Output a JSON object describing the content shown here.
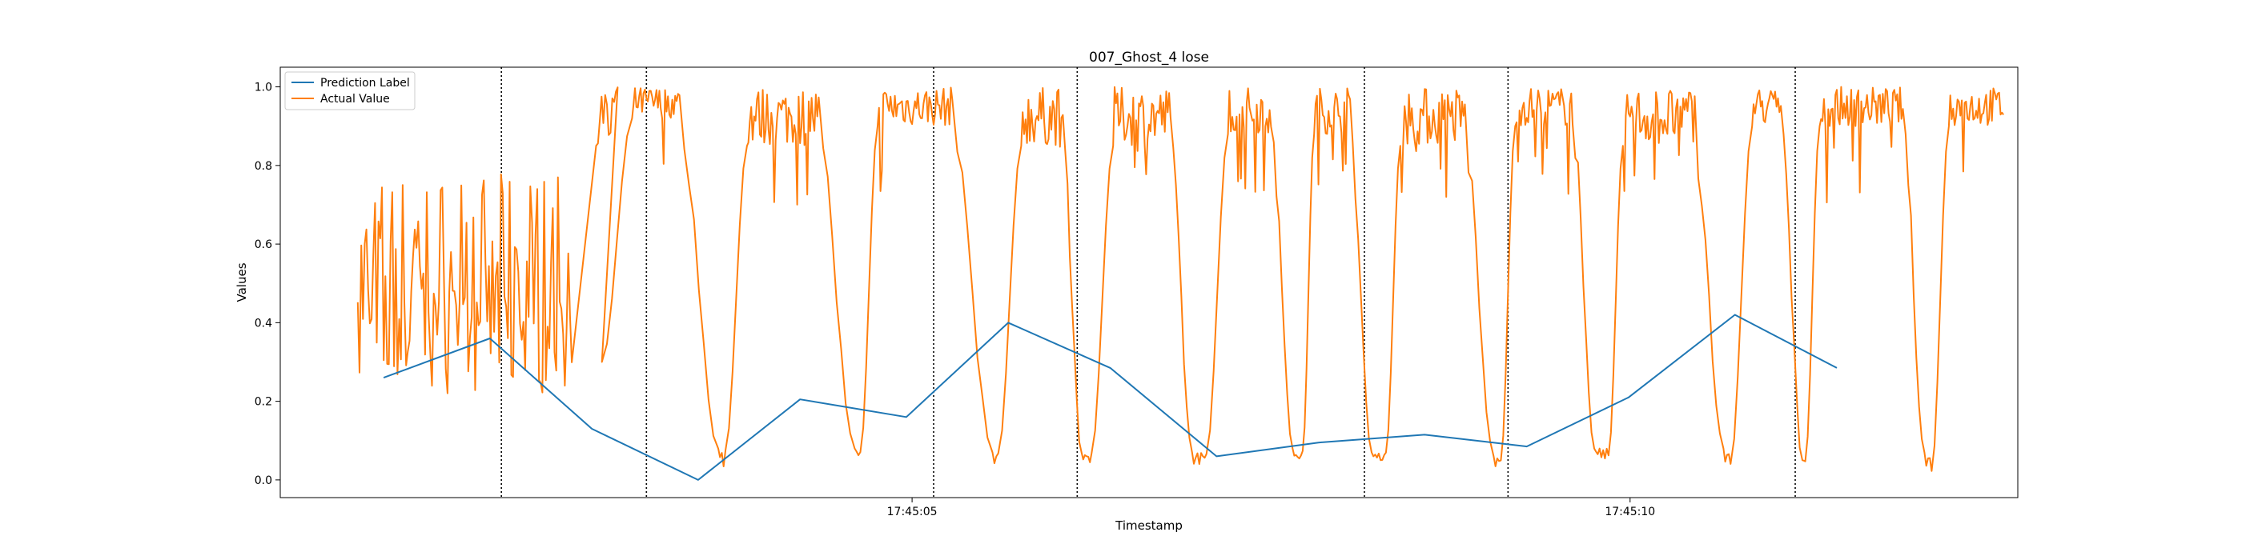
{
  "chart_data": {
    "type": "line",
    "title": "007_Ghost_4 lose",
    "xlabel": "Timestamp",
    "ylabel": "Values",
    "xlim": [
      0,
      12.1
    ],
    "ylim": [
      -0.045,
      1.05
    ],
    "yticks": [
      0.0,
      0.2,
      0.4,
      0.6,
      0.8,
      1.0
    ],
    "ytick_labels": [
      "0.0",
      "0.2",
      "0.4",
      "0.6",
      "0.8",
      "1.0"
    ],
    "xticks": [
      {
        "x": 4.4,
        "label": "17:45:05"
      },
      {
        "x": 9.4,
        "label": "17:45:10"
      }
    ],
    "legend_position": "top-left",
    "grid": false,
    "vlines": [
      1.54,
      2.55,
      4.55,
      5.55,
      7.55,
      8.55,
      10.55
    ],
    "series": [
      {
        "name": "Prediction Label",
        "color": "#1f77b4",
        "x": [
          0.72,
          1.46,
          2.17,
          2.91,
          3.62,
          4.36,
          5.07,
          5.78,
          6.52,
          7.23,
          7.97,
          8.68,
          9.39,
          10.13,
          10.84
        ],
        "y": [
          0.26,
          0.36,
          0.13,
          0.0,
          0.205,
          0.16,
          0.4,
          0.285,
          0.06,
          0.095,
          0.115,
          0.085,
          0.21,
          0.42,
          0.285
        ]
      },
      {
        "name": "Actual Value",
        "color": "#ff7f0e",
        "noise_segments": [
          [
            0.54,
            2.03,
            0.22,
            0.78
          ],
          [
            2.2,
            2.35,
            0.85,
            1.0
          ]
        ],
        "cycles": [
          {
            "rise": [
              2.24,
              2.45
            ],
            "high": [
              0.92,
              1.0
            ],
            "fall": [
              2.78,
              3.05
            ],
            "low": [
              0.02,
              0.08
            ]
          },
          {
            "rise": [
              3.1,
              3.25
            ],
            "high": [
              0.85,
              1.0
            ],
            "fall": [
              3.75,
              4.0
            ],
            "low": [
              0.03,
              0.08
            ]
          },
          {
            "rise": [
              4.04,
              4.16
            ],
            "high": [
              0.9,
              1.0
            ],
            "fall": [
              4.68,
              4.96
            ],
            "low": [
              0.03,
              0.07
            ]
          },
          {
            "rise": [
              5.0,
              5.16
            ],
            "high": [
              0.85,
              1.0
            ],
            "fall": [
              5.45,
              5.58
            ],
            "low": [
              0.04,
              0.07
            ]
          },
          {
            "rise": [
              5.65,
              5.8
            ],
            "high": [
              0.85,
              1.0
            ],
            "fall": [
              6.2,
              6.35
            ],
            "low": [
              0.04,
              0.07
            ]
          },
          {
            "rise": [
              6.45,
              6.6
            ],
            "high": [
              0.88,
              1.0
            ],
            "fall": [
              6.9,
              7.05
            ],
            "low": [
              0.05,
              0.08
            ]
          },
          {
            "rise": [
              7.12,
              7.2
            ],
            "high": [
              0.88,
              1.0
            ],
            "fall": [
              7.45,
              7.6
            ],
            "low": [
              0.05,
              0.07
            ]
          },
          {
            "rise": [
              7.7,
              7.8
            ],
            "high": [
              0.85,
              1.0
            ],
            "fall": [
              8.25,
              8.45
            ],
            "low": [
              0.02,
              0.06
            ]
          },
          {
            "rise": [
              8.5,
              8.6
            ],
            "high": [
              0.9,
              1.0
            ],
            "fall": [
              9.0,
              9.15
            ],
            "low": [
              0.05,
              0.08
            ]
          },
          {
            "rise": [
              9.25,
              9.35
            ],
            "high": [
              0.85,
              1.0
            ],
            "fall": [
              9.85,
              10.05
            ],
            "low": [
              0.04,
              0.08
            ]
          },
          {
            "rise": [
              10.1,
              10.25
            ],
            "high": [
              0.9,
              1.0
            ],
            "fall": [
              10.45,
              10.6
            ],
            "low": [
              0.03,
              0.05
            ]
          },
          {
            "rise": [
              10.62,
              10.72
            ],
            "high": [
              0.9,
              1.0
            ],
            "fall": [
              11.3,
              11.45
            ],
            "low": [
              0.02,
              0.07
            ]
          },
          {
            "rise": [
              11.5,
              11.62
            ],
            "high": [
              0.9,
              1.0
            ],
            "end": 12.0
          }
        ]
      }
    ]
  }
}
